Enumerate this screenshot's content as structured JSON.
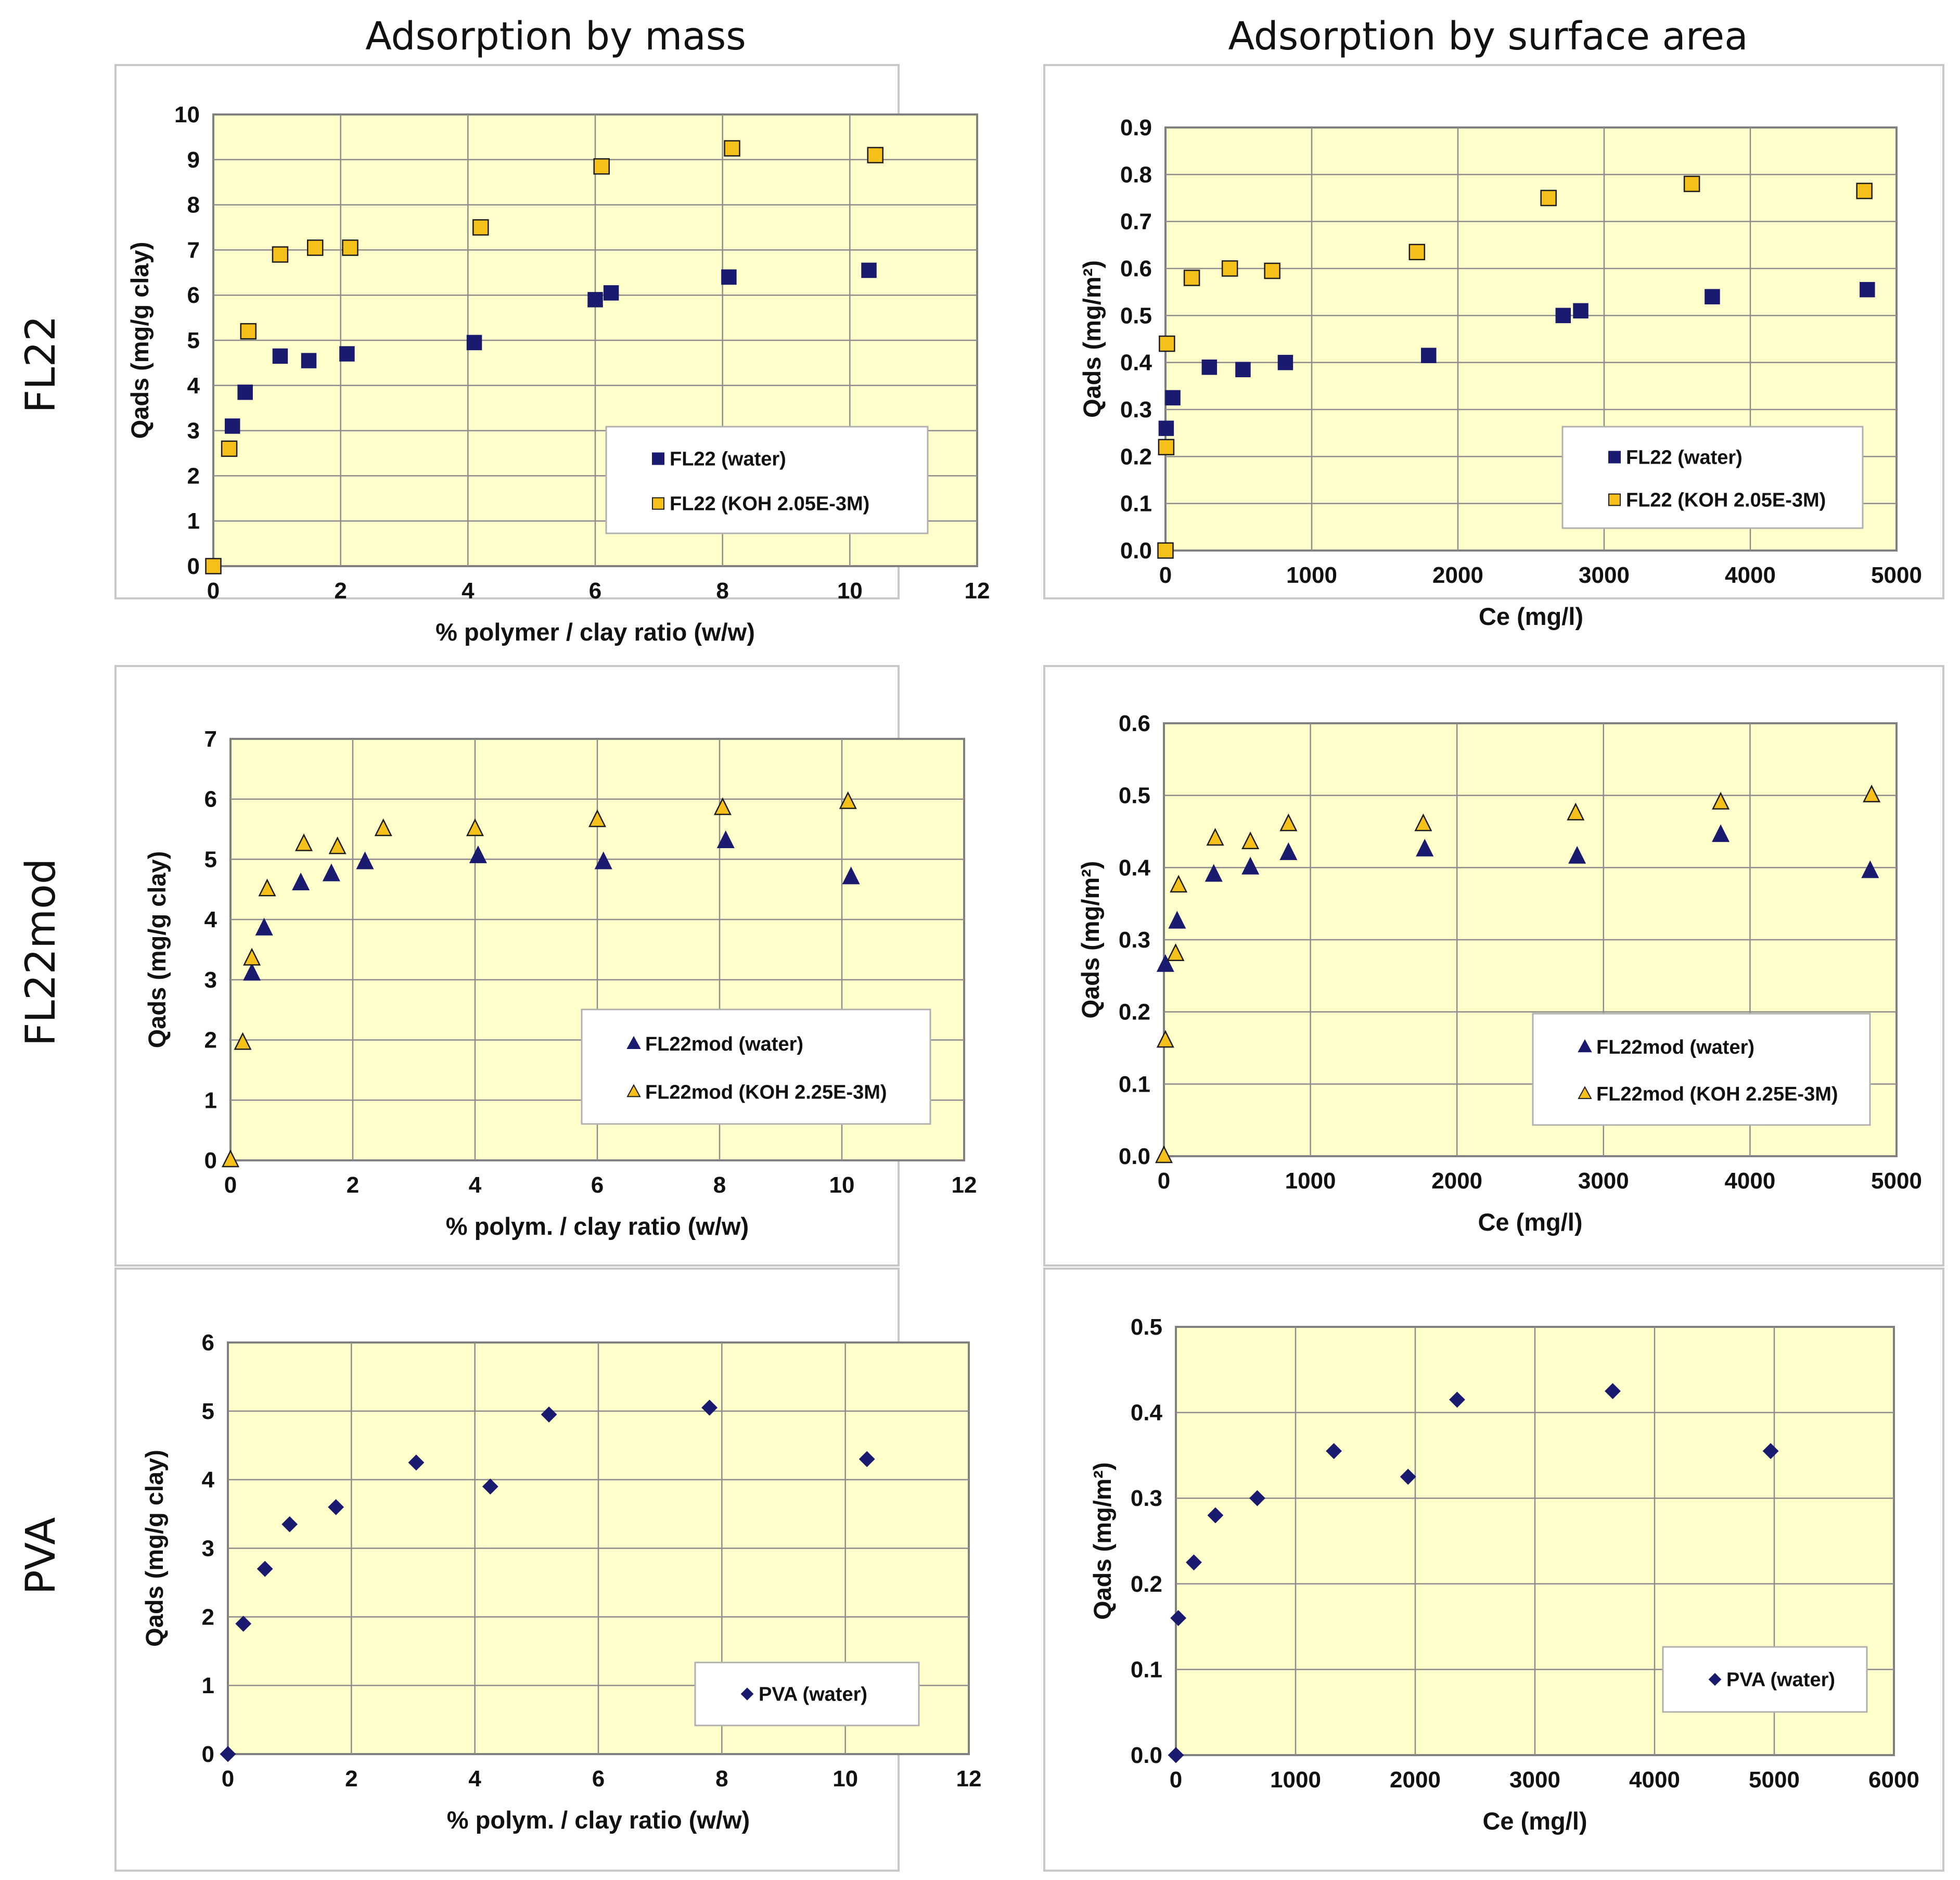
{
  "figure": {
    "column_titles": [
      "Adsorption by mass",
      "Adsorption by surface area"
    ],
    "row_labels": [
      "FL22",
      "FL22mod",
      "PVA"
    ],
    "colors": {
      "navy": "#1a1a6e",
      "gold": "#f5c01a",
      "plot_bg": "#ffffcc"
    }
  },
  "chart_data": [
    {
      "type": "scatter",
      "xlabel": "% polymer / clay ratio (w/w)",
      "ylabel": "Qads (mg/g clay)",
      "xlim": [
        0,
        12
      ],
      "ylim": [
        0,
        10
      ],
      "xticks": [
        0,
        2,
        4,
        6,
        8,
        10,
        12
      ],
      "yticks": [
        0,
        1,
        2,
        3,
        4,
        5,
        6,
        7,
        8,
        9,
        10
      ],
      "ytick_labels": [
        "0",
        "1",
        "2",
        "3",
        "4",
        "5",
        "6",
        "7",
        "8",
        "9",
        "10"
      ],
      "legend_position": "bottom-right",
      "grid": true,
      "series": [
        {
          "name": "FL22 (water)",
          "marker": "square",
          "color": "#1a1a6e",
          "x": [
            0.3,
            0.5,
            1.05,
            1.5,
            2.1,
            4.1,
            6.0,
            6.25,
            8.1,
            10.3
          ],
          "y": [
            3.1,
            3.85,
            4.65,
            4.55,
            4.7,
            4.95,
            5.9,
            6.05,
            6.4,
            6.55
          ]
        },
        {
          "name": "FL22 (KOH 2.05E-3M)",
          "marker": "square",
          "color": "#f5c01a",
          "x": [
            0,
            0.25,
            0.55,
            1.05,
            1.6,
            2.15,
            4.2,
            6.1,
            8.15,
            10.4
          ],
          "y": [
            0,
            2.6,
            5.2,
            6.9,
            7.05,
            7.05,
            7.5,
            8.85,
            9.25,
            9.1
          ]
        }
      ]
    },
    {
      "type": "scatter",
      "xlabel": "Ce (mg/l)",
      "ylabel": "Qads (mg/m²)",
      "xlim": [
        0,
        5000
      ],
      "ylim": [
        0,
        0.9
      ],
      "xticks": [
        0,
        1000,
        2000,
        3000,
        4000,
        5000
      ],
      "yticks": [
        0,
        0.1,
        0.2,
        0.3,
        0.4,
        0.5,
        0.6,
        0.7,
        0.8,
        0.9
      ],
      "ytick_labels": [
        "0.0",
        "0.1",
        "0.2",
        "0.3",
        "0.4",
        "0.5",
        "0.6",
        "0.7",
        "0.8",
        "0.9"
      ],
      "legend_position": "bottom-right",
      "grid": true,
      "series": [
        {
          "name": "FL22 (water)",
          "marker": "square",
          "color": "#1a1a6e",
          "x": [
            5,
            50,
            300,
            530,
            820,
            1800,
            2720,
            2840,
            3740,
            4800
          ],
          "y": [
            0.26,
            0.325,
            0.39,
            0.385,
            0.4,
            0.415,
            0.5,
            0.51,
            0.54,
            0.555
          ]
        },
        {
          "name": "FL22 (KOH 2.05E-3M)",
          "marker": "square",
          "color": "#f5c01a",
          "x": [
            0,
            5,
            10,
            180,
            440,
            730,
            1720,
            2620,
            3600,
            4780
          ],
          "y": [
            0,
            0.22,
            0.44,
            0.58,
            0.6,
            0.595,
            0.635,
            0.75,
            0.78,
            0.765
          ]
        }
      ]
    },
    {
      "type": "scatter",
      "xlabel": "% polym. / clay ratio (w/w)",
      "ylabel": "Qads (mg/g clay)",
      "xlim": [
        0,
        12
      ],
      "ylim": [
        0,
        7
      ],
      "xticks": [
        0,
        2,
        4,
        6,
        8,
        10,
        12
      ],
      "yticks": [
        0,
        1,
        2,
        3,
        4,
        5,
        6,
        7
      ],
      "ytick_labels": [
        "0",
        "1",
        "2",
        "3",
        "4",
        "5",
        "6",
        "7"
      ],
      "legend_position": "bottom-right",
      "grid": true,
      "series": [
        {
          "name": "FL22mod (water)",
          "marker": "triangle",
          "color": "#1a1a6e",
          "x": [
            0.35,
            0.55,
            1.15,
            1.65,
            2.2,
            4.05,
            6.1,
            8.1,
            10.15
          ],
          "y": [
            3.1,
            3.85,
            4.6,
            4.75,
            4.95,
            5.05,
            4.95,
            5.3,
            4.7
          ]
        },
        {
          "name": "FL22mod (KOH 2.25E-3M)",
          "marker": "triangle",
          "color": "#f5c01a",
          "x": [
            0,
            0.2,
            0.35,
            0.6,
            1.2,
            1.75,
            2.5,
            4.0,
            6.0,
            8.05,
            10.1
          ],
          "y": [
            0,
            1.95,
            3.35,
            4.5,
            5.25,
            5.2,
            5.5,
            5.5,
            5.65,
            5.85,
            5.95
          ]
        }
      ]
    },
    {
      "type": "scatter",
      "xlabel": "Ce (mg/l)",
      "ylabel": "Qads (mg/m²)",
      "xlim": [
        0,
        5000
      ],
      "ylim": [
        0,
        0.6
      ],
      "xticks": [
        0,
        1000,
        2000,
        3000,
        4000,
        5000
      ],
      "yticks": [
        0,
        0.1,
        0.2,
        0.3,
        0.4,
        0.5,
        0.6
      ],
      "ytick_labels": [
        "0.0",
        "0.1",
        "0.2",
        "0.3",
        "0.4",
        "0.5",
        "0.6"
      ],
      "legend_position": "bottom-right",
      "grid": true,
      "series": [
        {
          "name": "FL22mod (water)",
          "marker": "triangle",
          "color": "#1a1a6e",
          "x": [
            10,
            90,
            340,
            590,
            850,
            1780,
            2820,
            3800,
            4820
          ],
          "y": [
            0.265,
            0.325,
            0.39,
            0.4,
            0.42,
            0.425,
            0.415,
            0.445,
            0.395
          ]
        },
        {
          "name": "FL22mod (KOH 2.25E-3M)",
          "marker": "triangle",
          "color": "#f5c01a",
          "x": [
            0,
            10,
            80,
            100,
            350,
            590,
            850,
            1770,
            2810,
            3800,
            4830
          ],
          "y": [
            0,
            0.16,
            0.28,
            0.375,
            0.44,
            0.435,
            0.46,
            0.46,
            0.475,
            0.49,
            0.5
          ]
        }
      ]
    },
    {
      "type": "scatter",
      "xlabel": "% polym. / clay ratio (w/w)",
      "ylabel": "Qads (mg/g clay)",
      "xlim": [
        0,
        12
      ],
      "ylim": [
        0,
        6
      ],
      "xticks": [
        0,
        2,
        4,
        6,
        8,
        10,
        12
      ],
      "yticks": [
        0,
        1,
        2,
        3,
        4,
        5,
        6
      ],
      "ytick_labels": [
        "0",
        "1",
        "2",
        "3",
        "4",
        "5",
        "6"
      ],
      "legend_position": "bottom-right",
      "grid": true,
      "series": [
        {
          "name": "PVA (water)",
          "marker": "diamond",
          "color": "#1a1a6e",
          "x": [
            0,
            0.25,
            0.6,
            1.0,
            1.75,
            3.05,
            4.25,
            5.2,
            7.8,
            10.35
          ],
          "y": [
            0,
            1.9,
            2.7,
            3.35,
            3.6,
            4.25,
            3.9,
            4.95,
            5.05,
            4.3
          ]
        }
      ]
    },
    {
      "type": "scatter",
      "xlabel": "Ce (mg/l)",
      "ylabel": "Qads (mg/m²)",
      "xlim": [
        0,
        6000
      ],
      "ylim": [
        0,
        0.5
      ],
      "xticks": [
        0,
        1000,
        2000,
        3000,
        4000,
        5000,
        6000
      ],
      "yticks": [
        0,
        0.1,
        0.2,
        0.3,
        0.4,
        0.5
      ],
      "ytick_labels": [
        "0.0",
        "0.1",
        "0.2",
        "0.3",
        "0.4",
        "0.5"
      ],
      "legend_position": "bottom-right",
      "grid": true,
      "series": [
        {
          "name": "PVA (water)",
          "marker": "diamond",
          "color": "#1a1a6e",
          "x": [
            0,
            20,
            150,
            330,
            680,
            1320,
            1940,
            2350,
            3650,
            4970
          ],
          "y": [
            0,
            0.16,
            0.225,
            0.28,
            0.3,
            0.355,
            0.325,
            0.415,
            0.425,
            0.355
          ]
        }
      ]
    }
  ]
}
